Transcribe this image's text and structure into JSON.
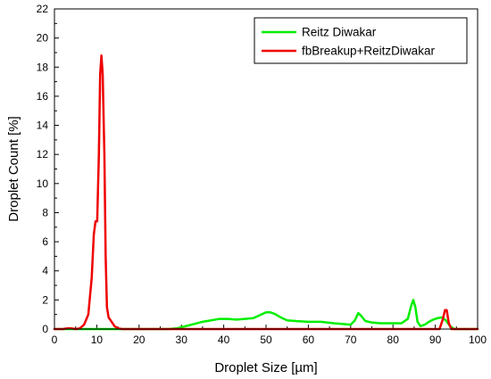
{
  "chart_data": {
    "type": "line",
    "xlabel": "Droplet Size [µm]",
    "ylabel": "Droplet Count [%]",
    "xlim": [
      0,
      100
    ],
    "ylim": [
      0,
      22
    ],
    "x_ticks": [
      0,
      10,
      20,
      30,
      40,
      50,
      60,
      70,
      80,
      90,
      100
    ],
    "y_ticks": [
      0,
      2,
      4,
      6,
      8,
      10,
      12,
      14,
      16,
      18,
      20,
      22
    ],
    "grid": false,
    "legend_position": "top-right",
    "series": [
      {
        "name": "Reitz Diwakar",
        "color": "#00ee00",
        "points": [
          [
            0,
            0
          ],
          [
            27,
            0
          ],
          [
            29,
            0.05
          ],
          [
            31,
            0.2
          ],
          [
            33,
            0.35
          ],
          [
            35,
            0.5
          ],
          [
            37,
            0.6
          ],
          [
            39,
            0.7
          ],
          [
            41,
            0.7
          ],
          [
            43,
            0.65
          ],
          [
            45,
            0.7
          ],
          [
            47,
            0.75
          ],
          [
            48.5,
            0.95
          ],
          [
            50,
            1.15
          ],
          [
            51,
            1.15
          ],
          [
            52,
            1.05
          ],
          [
            53.5,
            0.8
          ],
          [
            55,
            0.6
          ],
          [
            57,
            0.55
          ],
          [
            60,
            0.5
          ],
          [
            63,
            0.5
          ],
          [
            66,
            0.4
          ],
          [
            68,
            0.35
          ],
          [
            70,
            0.3
          ],
          [
            71,
            0.6
          ],
          [
            71.8,
            1.1
          ],
          [
            72.5,
            0.9
          ],
          [
            73.5,
            0.55
          ],
          [
            75,
            0.45
          ],
          [
            77,
            0.4
          ],
          [
            80,
            0.4
          ],
          [
            82,
            0.4
          ],
          [
            83.5,
            0.7
          ],
          [
            84.3,
            1.6
          ],
          [
            84.8,
            2.0
          ],
          [
            85.3,
            1.5
          ],
          [
            85.8,
            0.5
          ],
          [
            86.5,
            0.2
          ],
          [
            87.5,
            0.3
          ],
          [
            88.5,
            0.5
          ],
          [
            89.5,
            0.65
          ],
          [
            90.5,
            0.75
          ],
          [
            91.5,
            0.8
          ],
          [
            92.5,
            0.6
          ],
          [
            93.5,
            0.2
          ],
          [
            94.5,
            0
          ],
          [
            100,
            0
          ]
        ]
      },
      {
        "name": "fbBreakup+ReitzDiwakar",
        "color": "#ee0000",
        "points": [
          [
            0,
            0
          ],
          [
            2,
            0
          ],
          [
            3,
            0.05
          ],
          [
            4,
            0.05
          ],
          [
            5,
            0
          ],
          [
            6,
            0.05
          ],
          [
            7,
            0.3
          ],
          [
            8,
            1.0
          ],
          [
            8.8,
            3.5
          ],
          [
            9.3,
            6.5
          ],
          [
            9.7,
            7.4
          ],
          [
            10.1,
            7.4
          ],
          [
            10.5,
            12
          ],
          [
            10.8,
            17.5
          ],
          [
            11.1,
            18.8
          ],
          [
            11.4,
            17.5
          ],
          [
            11.8,
            12
          ],
          [
            12.1,
            5
          ],
          [
            12.4,
            1.5
          ],
          [
            12.8,
            0.8
          ],
          [
            13.5,
            0.5
          ],
          [
            14.2,
            0.2
          ],
          [
            15,
            0.05
          ],
          [
            16,
            0
          ],
          [
            91,
            0
          ],
          [
            91.7,
            0.6
          ],
          [
            92.3,
            1.3
          ],
          [
            92.7,
            1.3
          ],
          [
            93.2,
            0.4
          ],
          [
            93.8,
            0
          ],
          [
            100,
            0
          ]
        ]
      }
    ]
  }
}
